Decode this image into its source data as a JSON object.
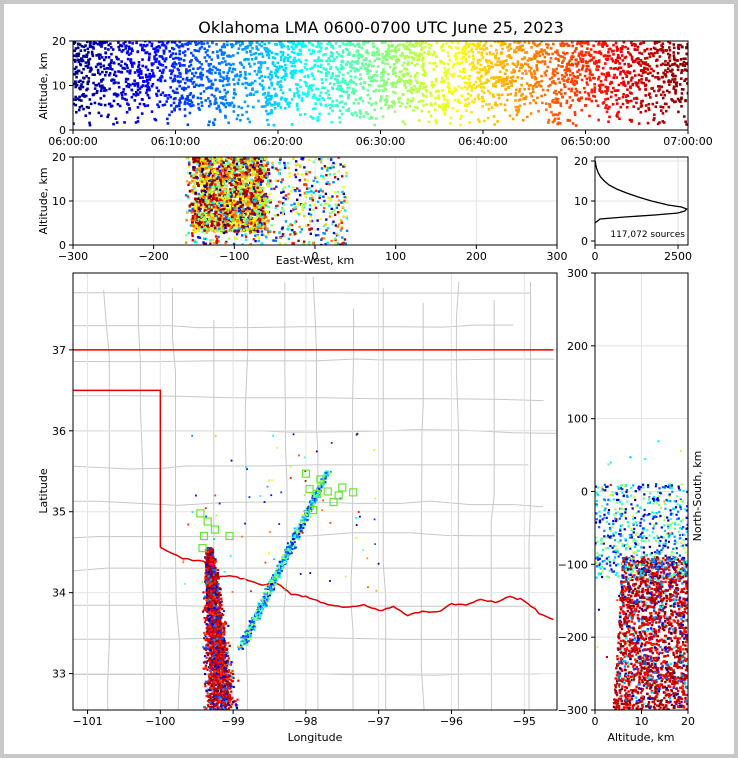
{
  "chart_data": [
    {
      "panel": "time-altitude",
      "type": "scatter",
      "title": "Oklahoma LMA 0600-0700 UTC June 25, 2023",
      "xlabel": "",
      "ylabel": "Altitude, km",
      "xticks": [
        "06:00:00",
        "06:10:00",
        "06:20:00",
        "06:30:00",
        "06:40:00",
        "06:50:00",
        "07:00:00"
      ],
      "xlim": [
        0,
        60
      ],
      "yticks": [
        "0",
        "10",
        "20"
      ],
      "ylim": [
        0,
        20
      ],
      "colormap": [
        "#00007f",
        "#0000ff",
        "#007fff",
        "#00ffff",
        "#7fff7f",
        "#ffff00",
        "#ff7f00",
        "#ff0000",
        "#7f0000"
      ],
      "density": {
        "min_alt_km": 5,
        "max_alt_km": 20
      }
    },
    {
      "panel": "eastwest-altitude",
      "type": "scatter",
      "xlabel": "East-West, km",
      "ylabel": "Altitude, km",
      "xticks": [
        "−300",
        "−200",
        "−100",
        "0",
        "100",
        "200",
        "300"
      ],
      "xlim": [
        -300,
        300
      ],
      "yticks": [
        "0",
        "10",
        "20"
      ],
      "ylim": [
        0,
        20
      ],
      "clusters": [
        {
          "x_range": [
            -160,
            -60
          ],
          "alt_range": [
            3,
            20
          ],
          "dense": true
        },
        {
          "x_range": [
            -60,
            40
          ],
          "alt_range": [
            0,
            20
          ],
          "dense": false
        }
      ]
    },
    {
      "panel": "altitude-histogram",
      "type": "line",
      "xticks": [
        "0",
        "2500"
      ],
      "xlim": [
        0,
        2800
      ],
      "yticks": [
        "0",
        "10",
        "20"
      ],
      "ylim": [
        0,
        20
      ],
      "annotation": "117,072 sources",
      "profile": [
        {
          "alt": 4.5,
          "count": 0
        },
        {
          "alt": 5.5,
          "count": 150
        },
        {
          "alt": 6,
          "count": 900
        },
        {
          "alt": 6.5,
          "count": 1800
        },
        {
          "alt": 7,
          "count": 2500
        },
        {
          "alt": 7.5,
          "count": 2700
        },
        {
          "alt": 8,
          "count": 2760
        },
        {
          "alt": 8.5,
          "count": 2600
        },
        {
          "alt": 9,
          "count": 2200
        },
        {
          "alt": 10,
          "count": 1700
        },
        {
          "alt": 11,
          "count": 1300
        },
        {
          "alt": 12,
          "count": 950
        },
        {
          "alt": 13,
          "count": 650
        },
        {
          "alt": 14,
          "count": 420
        },
        {
          "alt": 15,
          "count": 280
        },
        {
          "alt": 16,
          "count": 170
        },
        {
          "alt": 17,
          "count": 100
        },
        {
          "alt": 18,
          "count": 55
        },
        {
          "alt": 19,
          "count": 25
        },
        {
          "alt": 20,
          "count": 5
        }
      ]
    },
    {
      "panel": "plan-view",
      "type": "scatter",
      "xlabel": "Longitude",
      "ylabel": "Latitude",
      "xticks": [
        "−101",
        "−100",
        "−99",
        "−98",
        "−97",
        "−96",
        "−95"
      ],
      "xlim": [
        -101.2,
        -94.55
      ],
      "yticks": [
        "33",
        "34",
        "35",
        "36",
        "37"
      ],
      "ylim": [
        32.55,
        37.95
      ],
      "state_border_color": "#e00000",
      "county_line_color": "#c8c8c8",
      "stations": [
        {
          "lon": -99.45,
          "lat": 34.98
        },
        {
          "lon": -99.35,
          "lat": 34.88
        },
        {
          "lon": -99.25,
          "lat": 34.78
        },
        {
          "lon": -99.4,
          "lat": 34.7
        },
        {
          "lon": -99.05,
          "lat": 34.7
        },
        {
          "lon": -99.42,
          "lat": 34.55
        },
        {
          "lon": -98.0,
          "lat": 35.47
        },
        {
          "lon": -97.95,
          "lat": 35.28
        },
        {
          "lon": -97.85,
          "lat": 35.22
        },
        {
          "lon": -97.7,
          "lat": 35.25
        },
        {
          "lon": -97.62,
          "lat": 35.12
        },
        {
          "lon": -97.55,
          "lat": 35.2
        },
        {
          "lon": -97.35,
          "lat": 35.24
        },
        {
          "lon": -97.8,
          "lat": 35.4
        },
        {
          "lon": -97.9,
          "lat": 35.02
        },
        {
          "lon": -97.5,
          "lat": 35.3
        }
      ]
    },
    {
      "panel": "altitude-northsouth",
      "type": "scatter",
      "xlabel": "Altitude, km",
      "ylabel": "North-South, km",
      "xticks": [
        "0",
        "10",
        "20"
      ],
      "xlim": [
        0,
        20
      ],
      "yticks": [
        "−300",
        "−200",
        "−100",
        "0",
        "100",
        "200",
        "300"
      ],
      "ylim": [
        -300,
        300
      ]
    }
  ]
}
